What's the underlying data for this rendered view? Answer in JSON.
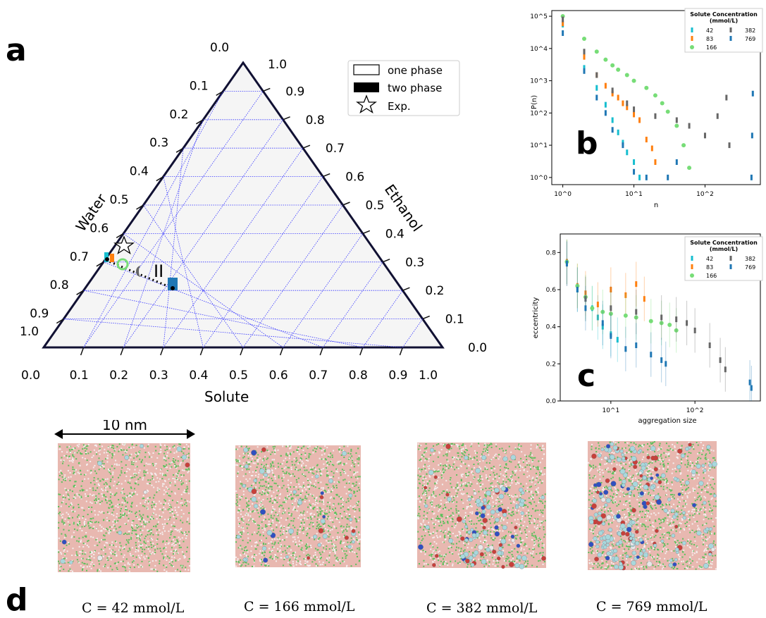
{
  "panels": {
    "a": "a",
    "b": "b",
    "c": "c",
    "d": "d"
  },
  "ternary": {
    "corner_labels": {
      "top": "0.0",
      "top_right": "1.0",
      "left_zero": "1.0",
      "right_zero": "0.0",
      "bottom_left": "0.0",
      "bottom_right": "1.0"
    },
    "left_ticks": [
      "0.1",
      "0.2",
      "0.3",
      "0.4",
      "0.5",
      "0.6",
      "0.7",
      "0.8",
      "0.9"
    ],
    "right_ticks": [
      "0.9",
      "0.8",
      "0.7",
      "0.6",
      "0.5",
      "0.4",
      "0.3",
      "0.2",
      "0.1"
    ],
    "bottom_ticks": [
      "0.1",
      "0.2",
      "0.3",
      "0.4",
      "0.5",
      "0.6",
      "0.7",
      "0.8",
      "0.9"
    ],
    "axis_left": "Water",
    "axis_right": "Ethanol",
    "axis_bottom": "Solute",
    "phase_marker": "II",
    "legend": [
      "one phase",
      "two phase",
      "Exp."
    ]
  },
  "chart_data": [
    {
      "type": "scatter",
      "panel": "b",
      "xlabel": "n",
      "ylabel": "P(n)",
      "xscale": "log",
      "yscale": "log",
      "xticks": [
        "10^0",
        "10^1",
        "10^2"
      ],
      "yticks": [
        "10^0",
        "10^1",
        "10^2",
        "10^3",
        "10^4",
        "10^5"
      ],
      "legend_title": "Solute Concentration",
      "legend_subtitle": "(mmol/L)",
      "series": [
        {
          "name": "42",
          "color": "#17becf",
          "points": [
            [
              1,
              55000
            ],
            [
              2,
              2500
            ],
            [
              3,
              600
            ],
            [
              4,
              180
            ],
            [
              5,
              60
            ],
            [
              6,
              25
            ],
            [
              7,
              12
            ],
            [
              8,
              6
            ],
            [
              10,
              3
            ],
            [
              12,
              1
            ]
          ]
        },
        {
          "name": "83",
          "color": "#ff7f0e",
          "points": [
            [
              1,
              60000
            ],
            [
              2,
              5500
            ],
            [
              3,
              1500
            ],
            [
              4,
              700
            ],
            [
              5,
              400
            ],
            [
              6,
              300
            ],
            [
              7,
              200
            ],
            [
              8,
              150
            ],
            [
              10,
              90
            ],
            [
              12,
              60
            ],
            [
              15,
              15
            ],
            [
              18,
              8
            ],
            [
              20,
              3
            ]
          ]
        },
        {
          "name": "166",
          "color": "#77dd77",
          "points": [
            [
              1,
              100000
            ],
            [
              2,
              20000
            ],
            [
              3,
              8000
            ],
            [
              4,
              4500
            ],
            [
              5,
              3000
            ],
            [
              6,
              2200
            ],
            [
              8,
              1500
            ],
            [
              10,
              1000
            ],
            [
              15,
              600
            ],
            [
              20,
              350
            ],
            [
              25,
              200
            ],
            [
              30,
              110
            ],
            [
              40,
              40
            ],
            [
              50,
              10
            ],
            [
              60,
              2
            ]
          ]
        },
        {
          "name": "382",
          "color": "#666666",
          "points": [
            [
              1,
              80000
            ],
            [
              2,
              8000
            ],
            [
              3,
              1500
            ],
            [
              5,
              500
            ],
            [
              8,
              200
            ],
            [
              10,
              130
            ],
            [
              20,
              80
            ],
            [
              40,
              60
            ],
            [
              60,
              40
            ],
            [
              100,
              20
            ],
            [
              150,
              80
            ],
            [
              200,
              300
            ],
            [
              220,
              10
            ]
          ]
        },
        {
          "name": "769",
          "color": "#1f77b4",
          "points": [
            [
              1,
              30000
            ],
            [
              2,
              2000
            ],
            [
              3,
              300
            ],
            [
              4,
              100
            ],
            [
              5,
              30
            ],
            [
              7,
              10
            ],
            [
              10,
              1.5
            ],
            [
              15,
              1
            ],
            [
              30,
              1
            ],
            [
              40,
              3
            ],
            [
              450,
              1
            ],
            [
              460,
              20
            ],
            [
              470,
              400
            ]
          ]
        }
      ]
    },
    {
      "type": "scatter",
      "panel": "c",
      "xlabel": "aggregation size",
      "ylabel": "eccentricity",
      "xscale": "log",
      "ylim": [
        0.0,
        0.9
      ],
      "xticks": [
        "10^1",
        "10^2"
      ],
      "yticks": [
        "0.0",
        "0.2",
        "0.4",
        "0.6",
        "0.8"
      ],
      "legend_title": "Solute Concentration",
      "legend_subtitle": "(mmol/L)",
      "series": [
        {
          "name": "42",
          "color": "#17becf",
          "points": [
            [
              3,
              0.75
            ],
            [
              4,
              0.6
            ],
            [
              5,
              0.55
            ],
            [
              6,
              0.5
            ],
            [
              7,
              0.45
            ],
            [
              8,
              0.4
            ],
            [
              10,
              0.36
            ],
            [
              12,
              0.33
            ]
          ]
        },
        {
          "name": "83",
          "color": "#ff7f0e",
          "points": [
            [
              3,
              0.75
            ],
            [
              4,
              0.62
            ],
            [
              5,
              0.58
            ],
            [
              7,
              0.52
            ],
            [
              10,
              0.6
            ],
            [
              15,
              0.57
            ],
            [
              20,
              0.63
            ],
            [
              25,
              0.55
            ]
          ]
        },
        {
          "name": "166",
          "color": "#77dd77",
          "points": [
            [
              3,
              0.75
            ],
            [
              4,
              0.62
            ],
            [
              5,
              0.56
            ],
            [
              6,
              0.5
            ],
            [
              8,
              0.48
            ],
            [
              10,
              0.47
            ],
            [
              15,
              0.46
            ],
            [
              20,
              0.45
            ],
            [
              30,
              0.43
            ],
            [
              40,
              0.42
            ],
            [
              50,
              0.41
            ],
            [
              60,
              0.38
            ]
          ]
        },
        {
          "name": "382",
          "color": "#666666",
          "points": [
            [
              3,
              0.74
            ],
            [
              5,
              0.55
            ],
            [
              10,
              0.5
            ],
            [
              20,
              0.48
            ],
            [
              40,
              0.45
            ],
            [
              60,
              0.44
            ],
            [
              80,
              0.42
            ],
            [
              100,
              0.38
            ],
            [
              150,
              0.3
            ],
            [
              200,
              0.22
            ],
            [
              230,
              0.17
            ]
          ]
        },
        {
          "name": "769",
          "color": "#1f77b4",
          "points": [
            [
              3,
              0.74
            ],
            [
              4,
              0.6
            ],
            [
              5,
              0.5
            ],
            [
              8,
              0.42
            ],
            [
              10,
              0.35
            ],
            [
              15,
              0.28
            ],
            [
              20,
              0.3
            ],
            [
              30,
              0.25
            ],
            [
              40,
              0.22
            ],
            [
              45,
              0.2
            ],
            [
              450,
              0.1
            ],
            [
              470,
              0.07
            ]
          ]
        }
      ]
    }
  ],
  "snapshots": {
    "scale_label": "10 nm",
    "captions": [
      "C = 42 mmol/L",
      "C = 166 mmol/L",
      "C = 382 mmol/L",
      "C = 769 mmol/L"
    ]
  }
}
